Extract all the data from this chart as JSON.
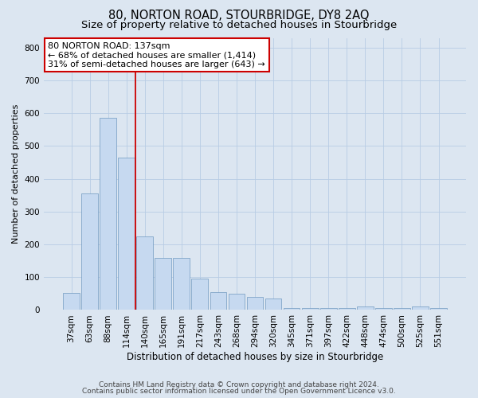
{
  "title": "80, NORTON ROAD, STOURBRIDGE, DY8 2AQ",
  "subtitle": "Size of property relative to detached houses in Stourbridge",
  "xlabel": "Distribution of detached houses by size in Stourbridge",
  "ylabel": "Number of detached properties",
  "footer_line1": "Contains HM Land Registry data © Crown copyright and database right 2024.",
  "footer_line2": "Contains public sector information licensed under the Open Government Licence v3.0.",
  "bar_labels": [
    "37sqm",
    "63sqm",
    "88sqm",
    "114sqm",
    "140sqm",
    "165sqm",
    "191sqm",
    "217sqm",
    "243sqm",
    "268sqm",
    "294sqm",
    "320sqm",
    "345sqm",
    "371sqm",
    "397sqm",
    "422sqm",
    "448sqm",
    "474sqm",
    "500sqm",
    "525sqm",
    "551sqm"
  ],
  "bar_values": [
    52,
    355,
    585,
    465,
    225,
    160,
    160,
    95,
    55,
    50,
    40,
    35,
    5,
    5,
    5,
    5,
    12,
    5,
    5,
    12,
    5
  ],
  "bar_color": "#c6d9f0",
  "bar_edge_color": "#7099c0",
  "grid_color": "#b8cce4",
  "background_color": "#dce6f1",
  "annotation_text": "80 NORTON ROAD: 137sqm\n← 68% of detached houses are smaller (1,414)\n31% of semi-detached houses are larger (643) →",
  "annotation_box_color": "#ffffff",
  "annotation_box_edge_color": "#cc0000",
  "vline_color": "#cc0000",
  "ylim": [
    0,
    830
  ],
  "yticks": [
    0,
    100,
    200,
    300,
    400,
    500,
    600,
    700,
    800
  ],
  "title_fontsize": 10.5,
  "subtitle_fontsize": 9.5,
  "xlabel_fontsize": 8.5,
  "ylabel_fontsize": 8,
  "tick_fontsize": 7.5,
  "annotation_fontsize": 8,
  "footer_fontsize": 6.5
}
